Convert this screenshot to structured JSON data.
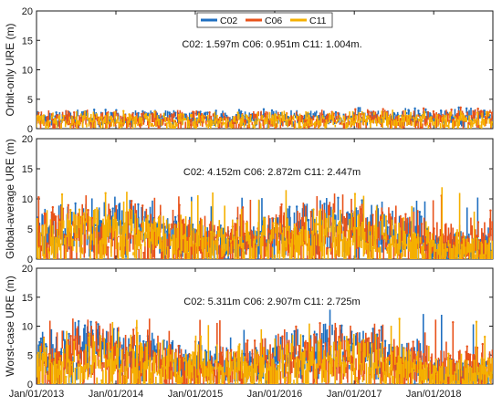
{
  "chart_data": {
    "type": "line",
    "shared_x": {
      "start": "Jan/01/2013",
      "end": "Sep/30/2018",
      "tick_labels": [
        "Jan/01/2013",
        "Jan/01/2014",
        "Jan/01/2015",
        "Jan/01/2016",
        "Jan/01/2017",
        "Jan/01/2018"
      ]
    },
    "legend": {
      "placement": "top-center",
      "entries": [
        {
          "name": "C02",
          "color": "#1f6fc0"
        },
        {
          "name": "C06",
          "color": "#e8521a"
        },
        {
          "name": "C11",
          "color": "#f5b000"
        }
      ]
    },
    "panels": [
      {
        "ylabel": "Orbit-only URE (m)",
        "ylim": [
          0,
          20
        ],
        "yticks": [
          0,
          5,
          10,
          15,
          20
        ],
        "annotation": "C02: 1.597m C06: 0.951m C11: 1.004m.",
        "series": [
          {
            "name": "C02",
            "mean": 1.597,
            "typical": [
              1.0,
              2.6
            ],
            "spikes_to": 3.2
          },
          {
            "name": "C06",
            "mean": 0.951,
            "typical": [
              0.4,
              2.4
            ],
            "spikes_to": 3.2
          },
          {
            "name": "C11",
            "mean": 1.004,
            "typical": [
              0.4,
              2.2
            ],
            "spikes_to": 3.0
          }
        ]
      },
      {
        "ylabel": "Global-average URE (m)",
        "ylim": [
          0,
          20
        ],
        "yticks": [
          0,
          5,
          10,
          15,
          20
        ],
        "annotation": "C02: 4.152m C06: 2.872m C11: 2.447m",
        "series": [
          {
            "name": "C02",
            "mean": 4.152,
            "typical": [
              2.5,
              7.5
            ],
            "spikes_to": 10.5
          },
          {
            "name": "C06",
            "mean": 2.872,
            "typical": [
              1.0,
              7.5
            ],
            "spikes_to": 11.0
          },
          {
            "name": "C11",
            "mean": 2.447,
            "typical": [
              0.5,
              6.5
            ],
            "spikes_to": 12.0
          }
        ]
      },
      {
        "ylabel": "Worst-case URE (m)",
        "ylim": [
          0,
          20
        ],
        "yticks": [
          0,
          5,
          10,
          15,
          20
        ],
        "annotation": "C02: 5.311m C06: 2.907m C11: 2.725m",
        "series": [
          {
            "name": "C02",
            "mean": 5.311,
            "typical": [
              3.0,
              8.0
            ],
            "spikes_to": 13.0
          },
          {
            "name": "C06",
            "mean": 2.907,
            "typical": [
              1.0,
              7.5
            ],
            "spikes_to": 11.5
          },
          {
            "name": "C11",
            "mean": 2.725,
            "typical": [
              0.5,
              6.5
            ],
            "spikes_to": 12.0
          }
        ]
      }
    ]
  }
}
